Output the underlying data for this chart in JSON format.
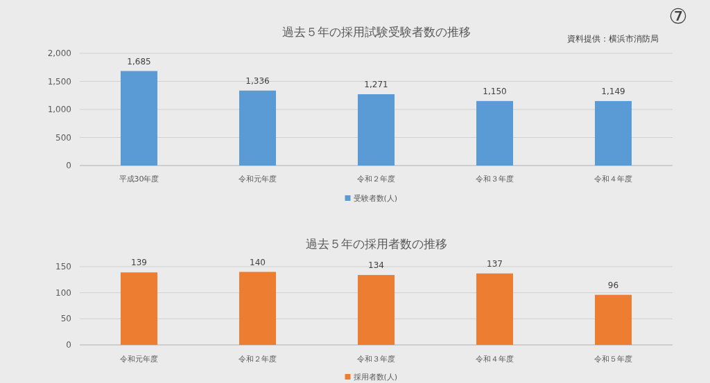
{
  "chart_data": [
    {
      "type": "bar",
      "title": "過去５年の採用試験受験者数の推移",
      "annotations": [
        "⑦",
        "資料提供：横浜市消防局"
      ],
      "categories": [
        "平成30年度",
        "令和元年度",
        "令和２年度",
        "令和３年度",
        "令和４年度"
      ],
      "series": [
        {
          "name": "受験者数(人)",
          "color": "#5b9bd5",
          "values": [
            1685,
            1336,
            1271,
            1150,
            1149
          ]
        }
      ],
      "ylim": [
        0,
        2000
      ],
      "yticks": [
        {
          "value": 0,
          "label": "0"
        },
        {
          "value": 500,
          "label": "500"
        },
        {
          "value": 1000,
          "label": "1,000"
        },
        {
          "value": 1500,
          "label": "1,500"
        },
        {
          "value": 2000,
          "label": "2,000"
        }
      ],
      "value_labels": [
        "1,685",
        "1,336",
        "1,271",
        "1,150",
        "1,149"
      ],
      "grid": "y",
      "legend": "bottom"
    },
    {
      "type": "bar",
      "title": "過去５年の採用者数の推移",
      "categories": [
        "令和元年度",
        "令和２年度",
        "令和３年度",
        "令和４年度",
        "令和５年度"
      ],
      "series": [
        {
          "name": "採用者数(人)",
          "color": "#ed7d31",
          "values": [
            139,
            140,
            134,
            137,
            96
          ]
        }
      ],
      "ylim": [
        0,
        150
      ],
      "yticks": [
        0,
        50,
        100,
        150
      ],
      "data_labels": true,
      "grid": "y",
      "legend": "bottom"
    }
  ]
}
